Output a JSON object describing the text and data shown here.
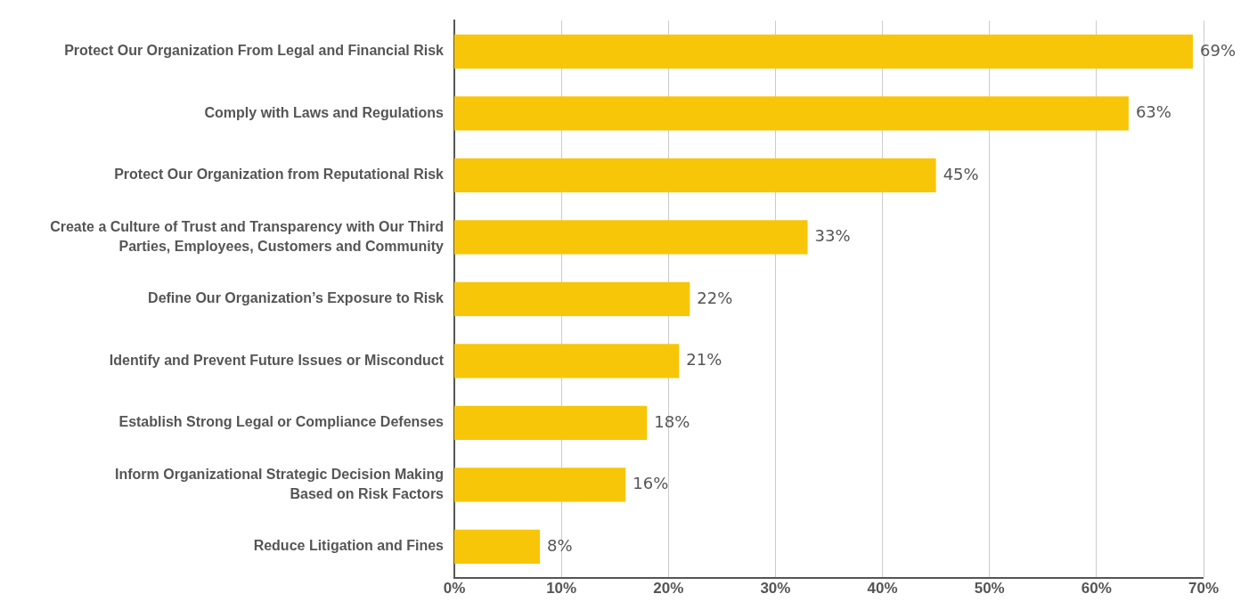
{
  "chart_data": {
    "type": "bar",
    "orientation": "horizontal",
    "categories": [
      "Protect Our Organization From Legal and Financial Risk",
      "Comply with Laws and Regulations",
      "Protect Our Organization from Reputational Risk",
      "Create a Culture of Trust and Transparency with Our Third\nParties, Employees, Customers and Community",
      "Define Our Organization’s Exposure to Risk",
      "Identify and Prevent Future Issues or Misconduct",
      "Establish Strong Legal or Compliance Defenses",
      "Inform Organizational Strategic Decision Making\nBased on Risk Factors",
      "Reduce Litigation and Fines"
    ],
    "values": [
      69,
      63,
      45,
      33,
      22,
      21,
      18,
      16,
      8
    ],
    "value_labels": [
      "69%",
      "63%",
      "45%",
      "33%",
      "22%",
      "21%",
      "18%",
      "16%",
      "8%"
    ],
    "color": "#f7c608",
    "xlim": [
      0,
      70
    ],
    "xticks": [
      {
        "value": 0,
        "label": "0%"
      },
      {
        "value": 10,
        "label": "10%"
      },
      {
        "value": 20,
        "label": "20%"
      },
      {
        "value": 30,
        "label": "30%"
      },
      {
        "value": 40,
        "label": "40%"
      },
      {
        "value": 50,
        "label": "50%"
      },
      {
        "value": 60,
        "label": "60%"
      },
      {
        "value": 70,
        "label": "70%"
      }
    ],
    "grid": "x"
  }
}
